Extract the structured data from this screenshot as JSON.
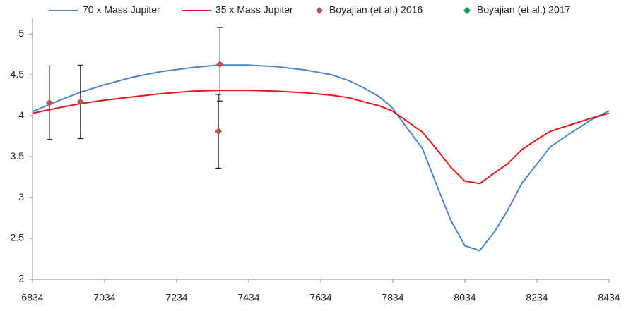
{
  "chart_data": {
    "type": "line",
    "xlim": [
      6834,
      8434
    ],
    "xticks": [
      6834,
      7034,
      7234,
      7434,
      7634,
      7834,
      8034,
      8234,
      8434
    ],
    "ylim": [
      2,
      5.2
    ],
    "yticks": [
      2,
      2.5,
      3,
      3.5,
      4,
      4.5,
      5
    ],
    "grid": false,
    "legend": "top",
    "series": [
      {
        "name": "70 x Mass Jupiter",
        "type": "line",
        "color": "#4a86c8",
        "x": [
          6834,
          6910,
          6969,
          7034,
          7110,
          7191,
          7277,
          7350,
          7430,
          7514,
          7591,
          7665,
          7712,
          7754,
          7797,
          7832,
          7865,
          7916,
          7954,
          7995,
          8034,
          8075,
          8116,
          8152,
          8193,
          8234,
          8271,
          8328,
          8385,
          8434
        ],
        "values": [
          4.05,
          4.19,
          4.29,
          4.38,
          4.47,
          4.54,
          4.59,
          4.62,
          4.62,
          4.6,
          4.56,
          4.5,
          4.43,
          4.34,
          4.23,
          4.1,
          3.9,
          3.6,
          3.17,
          2.72,
          2.41,
          2.35,
          2.58,
          2.84,
          3.18,
          3.41,
          3.62,
          3.79,
          3.95,
          4.06
        ]
      },
      {
        "name": "35 x Mass Jupiter",
        "type": "line",
        "color": "#e8161b",
        "x": [
          6834,
          6910,
          6969,
          7034,
          7110,
          7191,
          7277,
          7350,
          7430,
          7514,
          7591,
          7665,
          7712,
          7754,
          7797,
          7832,
          7865,
          7916,
          7954,
          7995,
          8034,
          8075,
          8116,
          8152,
          8193,
          8234,
          8271,
          8328,
          8385,
          8434
        ],
        "values": [
          4.03,
          4.1,
          4.15,
          4.19,
          4.23,
          4.27,
          4.3,
          4.31,
          4.31,
          4.3,
          4.28,
          4.25,
          4.22,
          4.17,
          4.12,
          4.06,
          3.96,
          3.8,
          3.6,
          3.37,
          3.2,
          3.17,
          3.3,
          3.41,
          3.59,
          3.71,
          3.81,
          3.89,
          3.97,
          4.03
        ]
      },
      {
        "name": "Boyajian (et al.) 2016",
        "type": "scatter",
        "color": "#c0504d",
        "x": [
          6881,
          6967,
          7354,
          7350
        ],
        "values": [
          4.16,
          4.17,
          4.63,
          3.81
        ],
        "errors": [
          0.45,
          0.45,
          0.45,
          0.45
        ]
      },
      {
        "name": "Boyajian (et al.) 2017",
        "type": "scatter",
        "color": "#00a050",
        "x": [],
        "values": [],
        "errors": []
      }
    ]
  }
}
